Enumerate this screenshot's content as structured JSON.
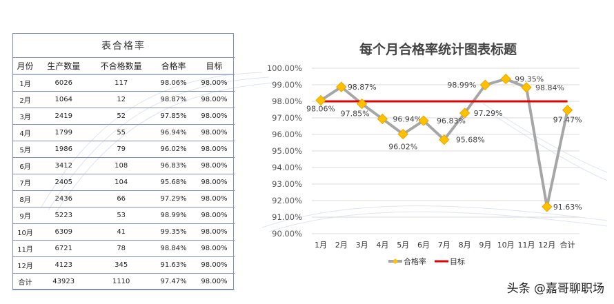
{
  "table": {
    "title": "表合格率",
    "headers": [
      "月份",
      "生产数量",
      "不合格数量",
      "合格率",
      "目标"
    ],
    "rows": [
      [
        "1月",
        "6026",
        "117",
        "98.06%",
        "98.00%"
      ],
      [
        "2月",
        "1064",
        "12",
        "98.87%",
        "98.00%"
      ],
      [
        "3月",
        "2419",
        "52",
        "97.85%",
        "98.00%"
      ],
      [
        "4月",
        "1799",
        "55",
        "96.94%",
        "98.00%"
      ],
      [
        "5月",
        "1986",
        "79",
        "96.02%",
        "98.00%"
      ],
      [
        "6月",
        "3412",
        "108",
        "96.83%",
        "98.00%"
      ],
      [
        "7月",
        "2405",
        "104",
        "95.68%",
        "98.00%"
      ],
      [
        "8月",
        "2436",
        "66",
        "97.29%",
        "98.00%"
      ],
      [
        "9月",
        "5223",
        "53",
        "98.99%",
        "98.00%"
      ],
      [
        "10月",
        "6309",
        "41",
        "99.35%",
        "98.00%"
      ],
      [
        "11月",
        "6721",
        "78",
        "98.84%",
        "98.00%"
      ],
      [
        "12月",
        "4123",
        "345",
        "91.63%",
        "98.00%"
      ],
      [
        "合计",
        "43923",
        "1110",
        "97.47%",
        "98.00%"
      ]
    ]
  },
  "chart_data": {
    "type": "line",
    "title": "每个月合格率统计图表标题",
    "categories": [
      "1月",
      "2月",
      "3月",
      "4月",
      "5月",
      "6月",
      "7月",
      "8月",
      "9月",
      "10月",
      "11月",
      "12月",
      "合计"
    ],
    "series": [
      {
        "name": "合格率",
        "color": "#a6a6a6",
        "marker_color": "#ffc000",
        "values": [
          98.06,
          98.87,
          97.85,
          96.94,
          96.02,
          96.83,
          95.68,
          97.29,
          98.99,
          99.35,
          98.84,
          91.63,
          97.47
        ],
        "labels": [
          "98.06%",
          "98.87%",
          "97.85%",
          "96.94%",
          "96.02%",
          "96.83%",
          "95.68%",
          "97.29%",
          "98.99%",
          "99.35%",
          "98.84%",
          "91.63%",
          "97.47%"
        ]
      },
      {
        "name": "目标",
        "color": "#e00000",
        "values": [
          98,
          98,
          98,
          98,
          98,
          98,
          98,
          98,
          98,
          98,
          98,
          98,
          98
        ]
      }
    ],
    "ylim": [
      90,
      100
    ],
    "yticks": [
      "90.00%",
      "91.00%",
      "92.00%",
      "93.00%",
      "94.00%",
      "95.00%",
      "96.00%",
      "97.00%",
      "98.00%",
      "99.00%",
      "100.00%"
    ],
    "grid": true,
    "legend": "bottom"
  },
  "watermark": "头条 @嘉哥聊职场"
}
